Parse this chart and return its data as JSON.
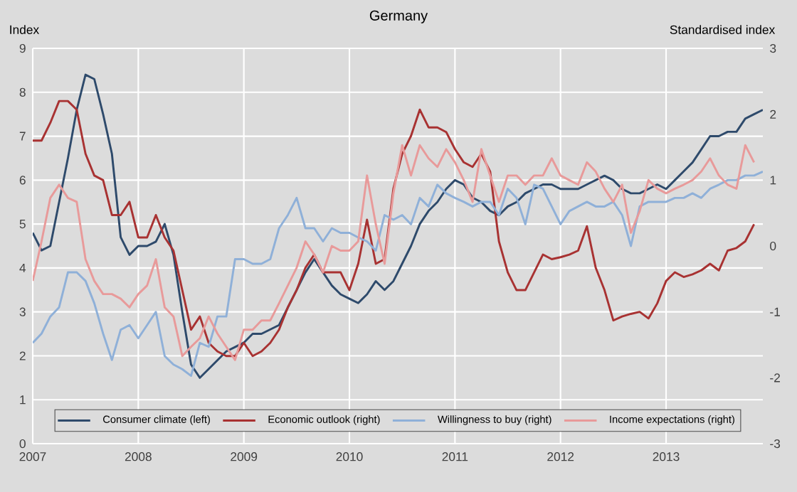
{
  "chart_data": {
    "type": "line",
    "title": "Germany",
    "ylabel": "Index",
    "y2label": "Standardised index",
    "x": [
      "2007-01",
      "2007-02",
      "2007-03",
      "2007-04",
      "2007-05",
      "2007-06",
      "2007-07",
      "2007-08",
      "2007-09",
      "2007-10",
      "2007-11",
      "2007-12",
      "2008-01",
      "2008-02",
      "2008-03",
      "2008-04",
      "2008-05",
      "2008-06",
      "2008-07",
      "2008-08",
      "2008-09",
      "2008-10",
      "2008-11",
      "2008-12",
      "2009-01",
      "2009-02",
      "2009-03",
      "2009-04",
      "2009-05",
      "2009-06",
      "2009-07",
      "2009-08",
      "2009-09",
      "2009-10",
      "2009-11",
      "2009-12",
      "2010-01",
      "2010-02",
      "2010-03",
      "2010-04",
      "2010-05",
      "2010-06",
      "2010-07",
      "2010-08",
      "2010-09",
      "2010-10",
      "2010-11",
      "2010-12",
      "2011-01",
      "2011-02",
      "2011-03",
      "2011-04",
      "2011-05",
      "2011-06",
      "2011-07",
      "2011-08",
      "2011-09",
      "2011-10",
      "2011-11",
      "2011-12",
      "2012-01",
      "2012-02",
      "2012-03",
      "2012-04",
      "2012-05",
      "2012-06",
      "2012-07",
      "2012-08",
      "2012-09",
      "2012-10",
      "2012-11",
      "2012-12",
      "2013-01",
      "2013-02",
      "2013-03",
      "2013-04",
      "2013-05",
      "2013-06",
      "2013-07",
      "2013-08",
      "2013-09",
      "2013-10",
      "2013-11",
      "2013-12"
    ],
    "series": [
      {
        "name": "Consumer climate (left)",
        "color": "#2e4a6b",
        "values": [
          4.8,
          4.4,
          4.5,
          5.5,
          6.5,
          7.6,
          8.4,
          8.3,
          7.5,
          6.6,
          4.7,
          4.3,
          4.5,
          4.5,
          4.6,
          5.0,
          4.3,
          3.0,
          1.8,
          1.5,
          1.7,
          1.9,
          2.1,
          2.2,
          2.3,
          2.5,
          2.5,
          2.6,
          2.7,
          3.1,
          3.5,
          3.9,
          4.2,
          3.9,
          3.6,
          3.4,
          3.3,
          3.2,
          3.4,
          3.7,
          3.5,
          3.7,
          4.1,
          4.5,
          5.0,
          5.3,
          5.5,
          5.8,
          6.0,
          5.9,
          5.6,
          5.5,
          5.3,
          5.2,
          5.4,
          5.5,
          5.7,
          5.8,
          5.9,
          5.9,
          5.8,
          5.8,
          5.8,
          5.9,
          6.0,
          6.1,
          6.0,
          5.8,
          5.7,
          5.7,
          5.8,
          5.9,
          5.8,
          6.0,
          6.2,
          6.4,
          6.7,
          7.0,
          7.0,
          7.1,
          7.1,
          7.4,
          7.5,
          7.6
        ]
      },
      {
        "name": "Economic outlook (right)",
        "color": "#a83232",
        "axis": "y2",
        "values": [
          1.6,
          1.6,
          1.87,
          2.2,
          2.2,
          2.07,
          1.4,
          1.07,
          1.0,
          0.47,
          0.47,
          0.67,
          0.13,
          0.13,
          0.47,
          0.13,
          -0.07,
          -0.67,
          -1.27,
          -1.07,
          -1.47,
          -1.6,
          -1.67,
          -1.67,
          -1.47,
          -1.67,
          -1.6,
          -1.47,
          -1.27,
          -0.93,
          -0.67,
          -0.33,
          -0.13,
          -0.4,
          -0.4,
          -0.4,
          -0.67,
          -0.27,
          0.4,
          -0.27,
          -0.2,
          0.87,
          1.4,
          1.67,
          2.07,
          1.8,
          1.8,
          1.73,
          1.47,
          1.27,
          1.2,
          1.4,
          1.13,
          0.07,
          -0.4,
          -0.67,
          -0.67,
          -0.4,
          -0.13,
          -0.2,
          -0.17,
          -0.13,
          -0.07,
          0.3,
          -0.33,
          -0.67,
          -1.13,
          -1.07,
          -1.03,
          -1.0,
          -1.1,
          -0.87,
          -0.53,
          -0.4,
          -0.47,
          -0.43,
          -0.37,
          -0.27,
          -0.37,
          -0.07,
          -0.03,
          0.07,
          0.33,
          null
        ]
      },
      {
        "name": "Willingness to buy (right)",
        "color": "#8fb0d8",
        "axis": "y2",
        "values": [
          -1.47,
          -1.33,
          -1.07,
          -0.93,
          -0.4,
          -0.4,
          -0.53,
          -0.87,
          -1.33,
          -1.73,
          -1.27,
          -1.2,
          -1.4,
          -1.2,
          -1.0,
          -1.67,
          -1.8,
          -1.87,
          -1.97,
          -1.47,
          -1.53,
          -1.07,
          -1.07,
          -0.2,
          -0.2,
          -0.27,
          -0.27,
          -0.2,
          0.27,
          0.47,
          0.73,
          0.27,
          0.27,
          0.07,
          0.27,
          0.2,
          0.2,
          0.13,
          0.07,
          -0.07,
          0.47,
          0.4,
          0.47,
          0.33,
          0.73,
          0.6,
          0.93,
          0.8,
          0.73,
          0.67,
          0.6,
          0.67,
          0.67,
          0.47,
          0.87,
          0.73,
          0.33,
          0.93,
          0.87,
          0.6,
          0.33,
          0.53,
          0.6,
          0.67,
          0.6,
          0.6,
          0.67,
          0.47,
          0,
          0.6,
          0.67,
          0.67,
          0.67,
          0.73,
          0.73,
          0.8,
          0.73,
          0.87,
          0.93,
          1.0,
          1.0,
          1.07,
          1.07,
          1.13
        ]
      },
      {
        "name": "Income expectations (right)",
        "color": "#e89a9a",
        "axis": "y2",
        "values": [
          -0.53,
          0.07,
          0.73,
          0.93,
          0.73,
          0.67,
          -0.2,
          -0.53,
          -0.73,
          -0.73,
          -0.8,
          -0.93,
          -0.73,
          -0.6,
          -0.2,
          -0.93,
          -1.07,
          -1.67,
          -1.53,
          -1.4,
          -1.07,
          -1.33,
          -1.53,
          -1.73,
          -1.27,
          -1.27,
          -1.13,
          -1.13,
          -0.87,
          -0.6,
          -0.33,
          0.07,
          -0.13,
          -0.4,
          0,
          -0.07,
          -0.07,
          0.07,
          1.07,
          0.33,
          -0.27,
          0.8,
          1.53,
          1.07,
          1.53,
          1.33,
          1.2,
          1.47,
          1.27,
          1.0,
          0.67,
          1.47,
          1.07,
          0.67,
          1.07,
          1.07,
          0.93,
          1.07,
          1.07,
          1.33,
          1.07,
          1.0,
          0.93,
          1.27,
          1.13,
          0.87,
          0.67,
          0.93,
          0.2,
          0.53,
          1.0,
          0.87,
          0.8,
          0.87,
          0.93,
          1.0,
          1.13,
          1.33,
          1.07,
          0.93,
          0.87,
          1.53,
          1.27,
          null
        ]
      }
    ],
    "xlim": [
      "2007-01",
      "2013-12"
    ],
    "xticks": [
      {
        "value": "2007-01",
        "label": "2007"
      },
      {
        "value": "2008-01",
        "label": "2008"
      },
      {
        "value": "2009-01",
        "label": "2009"
      },
      {
        "value": "2010-01",
        "label": "2010"
      },
      {
        "value": "2011-01",
        "label": "2011"
      },
      {
        "value": "2012-01",
        "label": "2012"
      },
      {
        "value": "2013-01",
        "label": "2013"
      }
    ],
    "ylim": [
      0,
      9
    ],
    "yticks": [
      0,
      1,
      2,
      3,
      4,
      5,
      6,
      7,
      8,
      9
    ],
    "y2lim": [
      -3,
      3
    ],
    "y2ticks": [
      -3,
      -2,
      -1,
      0,
      1,
      2,
      3
    ],
    "grid": true,
    "legend": "bottom",
    "line_style": "solid"
  }
}
